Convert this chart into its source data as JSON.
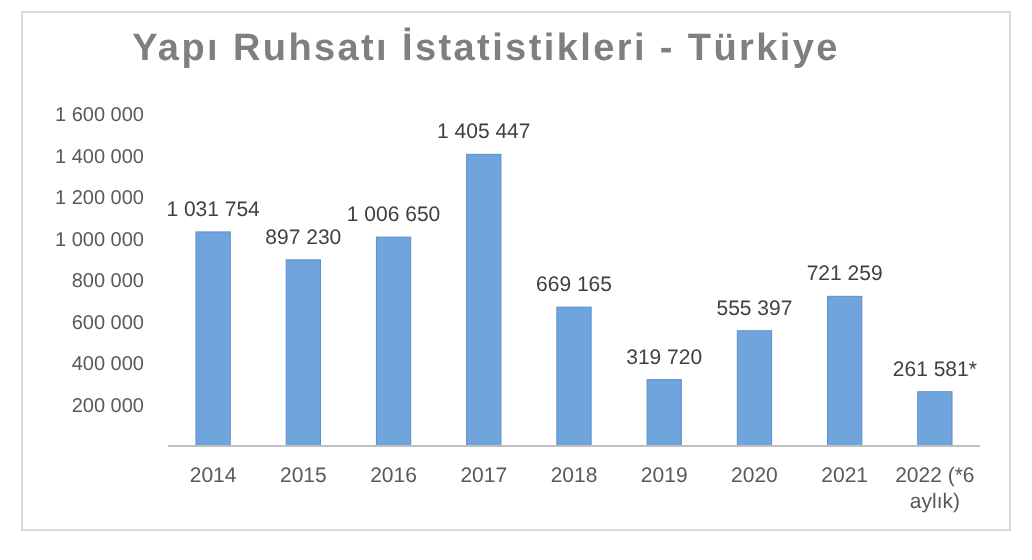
{
  "chart_data": {
    "type": "bar",
    "title": "Yapı Ruhsatı İstatistikleri - Türkiye",
    "categories": [
      "2014",
      "2015",
      "2016",
      "2017",
      "2018",
      "2019",
      "2020",
      "2021",
      "2022 (*6 aylık)"
    ],
    "values": [
      1031754,
      897230,
      1006650,
      1405447,
      669165,
      319720,
      555397,
      721259,
      261581
    ],
    "value_labels": [
      "1 031 754",
      "897 230",
      "1 006 650",
      "1 405 447",
      "669 165",
      "319 720",
      "555 397",
      "721 259",
      "261 581*"
    ],
    "color": "#6fa5dc",
    "ylim": [
      0,
      1600000
    ],
    "yticks": [
      {
        "value": 200000,
        "label": "200 000"
      },
      {
        "value": 400000,
        "label": "400 000"
      },
      {
        "value": 600000,
        "label": "600 000"
      },
      {
        "value": 800000,
        "label": "800 000"
      },
      {
        "value": 1000000,
        "label": "1 000 000"
      },
      {
        "value": 1200000,
        "label": "1 200 000"
      },
      {
        "value": 1400000,
        "label": "1 400 000"
      },
      {
        "value": 1600000,
        "label": "1 600 000"
      }
    ],
    "grid": false
  }
}
